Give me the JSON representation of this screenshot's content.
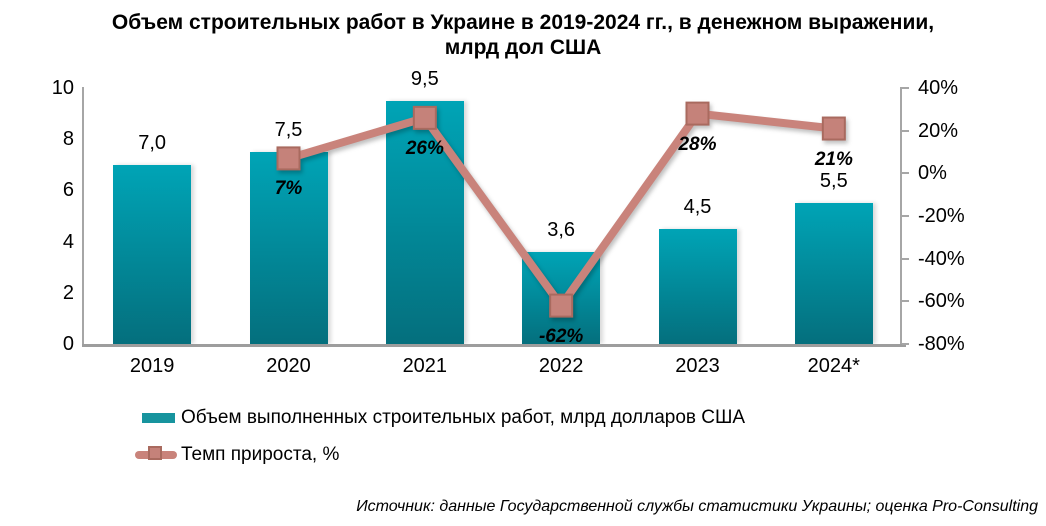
{
  "chart_data": {
    "type": "bar+line combo",
    "title": "Объем строительных работ в Украине в 2019-2024 гг., в денежном выражении, млрд дол США",
    "title_lines": [
      "Объем строительных работ в Украине в 2019-2024 гг., в денежном выражении,",
      "млрд дол США"
    ],
    "categories": [
      "2019",
      "2020",
      "2021",
      "2022",
      "2023",
      "2024*"
    ],
    "series": [
      {
        "name": "Объем выполненных строительных работ, млрд долларов США",
        "type": "bar",
        "axis": "left",
        "values": [
          7.0,
          7.5,
          9.5,
          3.6,
          4.5,
          5.5
        ],
        "labels": [
          "7,0",
          "7,5",
          "9,5",
          "3,6",
          "4,5",
          "5,5"
        ]
      },
      {
        "name": "Темп прироста, %",
        "type": "line",
        "axis": "right",
        "values": [
          null,
          7,
          26,
          -62,
          28,
          21
        ],
        "labels": [
          null,
          "7%",
          "26%",
          "-62%",
          "28%",
          "21%"
        ]
      }
    ],
    "left_axis": {
      "min": 0,
      "max": 10,
      "tick_values": [
        0,
        2,
        4,
        6,
        8,
        10
      ],
      "tick_labels": [
        "0",
        "2",
        "4",
        "6",
        "8",
        "10"
      ]
    },
    "right_axis": {
      "min": -80,
      "max": 40,
      "tick_values": [
        40,
        20,
        0,
        -20,
        -40,
        -60,
        -80
      ],
      "tick_labels": [
        "40%",
        "20%",
        "0%",
        "-20%",
        "-40%",
        "-60%",
        "-80%"
      ]
    },
    "grid": false,
    "legend_position": "bottom-left",
    "source": "Источник: данные Государственной службы статистики Украины; оценка Pro-Consulting",
    "colors": {
      "bar_top": "#00a4b6",
      "bar_bottom": "#046f7d",
      "bar_solid": "#17949e",
      "line": "#c9837b",
      "marker_fill": "#c5827a",
      "marker_border": "#a96a5f",
      "axis": "#a6a6a6",
      "label_text": "#000000"
    }
  }
}
